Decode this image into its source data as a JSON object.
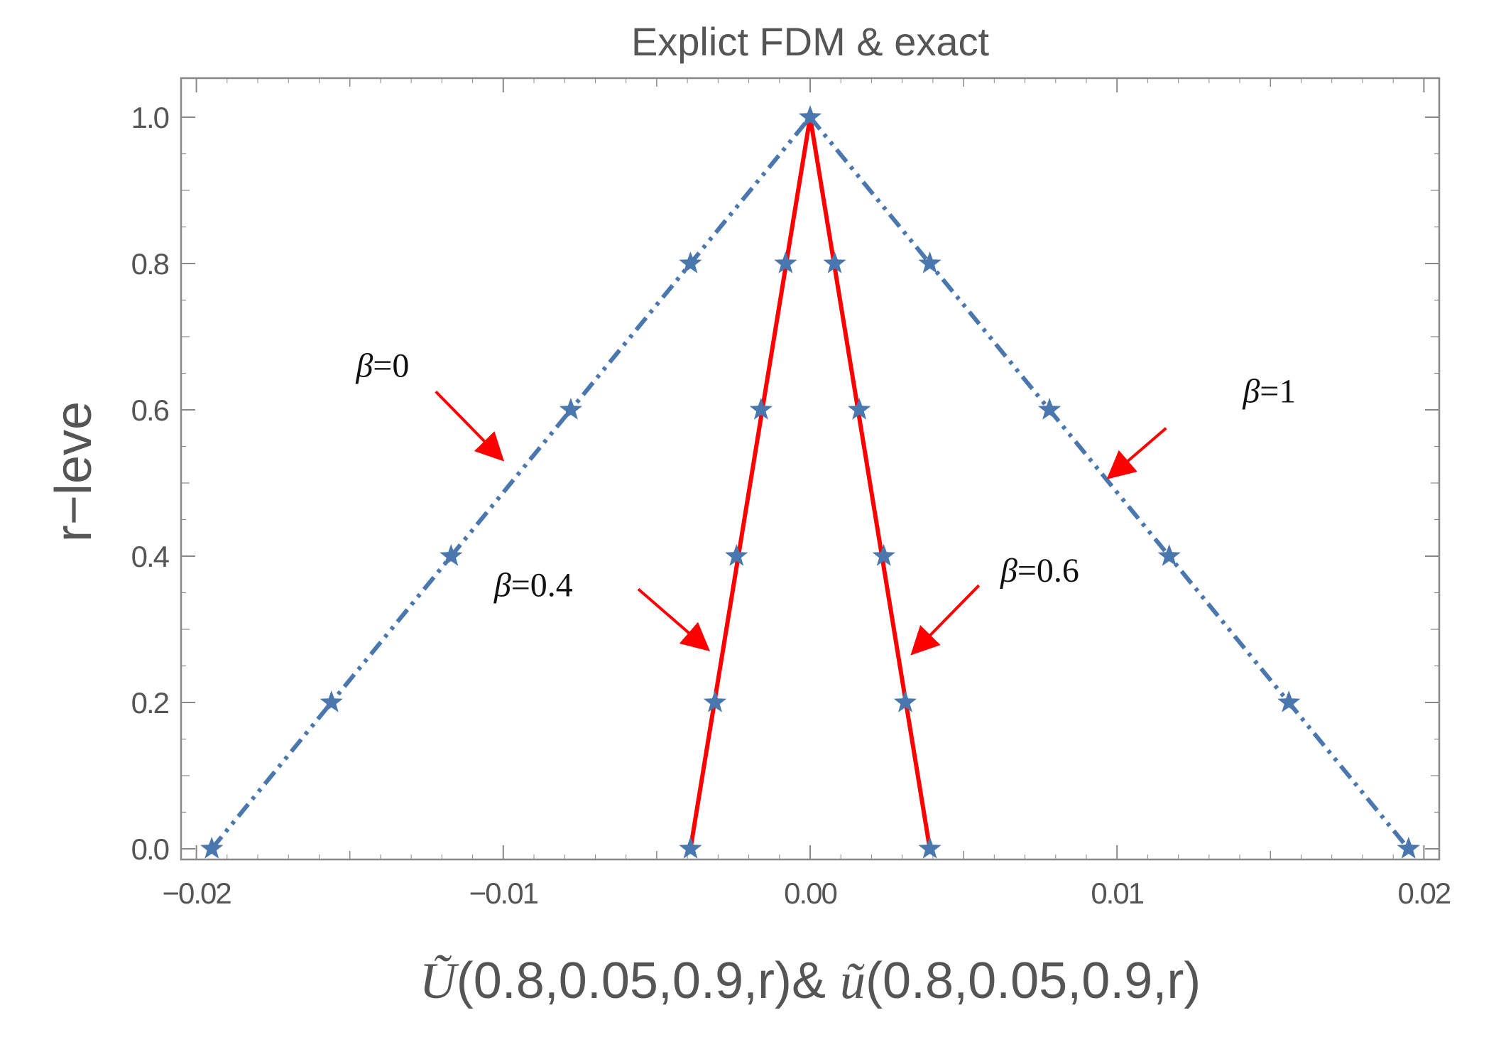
{
  "chart_data": {
    "type": "line",
    "title": "Explict FDM & exact",
    "ylabel": "r−leve",
    "xlabel": {
      "u1_symbol": "Ũ",
      "u1_args": "(0.8,0.05,0.9,r)",
      "joiner": "& ",
      "u2_symbol": "ũ",
      "u2_args": "(0.8,0.05,0.9,r)"
    },
    "xlim": [
      -0.0205,
      0.0205
    ],
    "ylim": [
      0,
      1.0
    ],
    "x_ticks": [
      {
        "value": -0.02,
        "label": "−0.02"
      },
      {
        "value": -0.01,
        "label": "−0.01"
      },
      {
        "value": 0.0,
        "label": "0.00"
      },
      {
        "value": 0.01,
        "label": "0.01"
      },
      {
        "value": 0.02,
        "label": "0.02"
      }
    ],
    "y_ticks": [
      {
        "value": 0.0,
        "label": "0.0"
      },
      {
        "value": 0.2,
        "label": "0.2"
      },
      {
        "value": 0.4,
        "label": "0.4"
      },
      {
        "value": 0.6,
        "label": "0.6"
      },
      {
        "value": 0.8,
        "label": "0.8"
      },
      {
        "value": 1.0,
        "label": "1.0"
      }
    ],
    "grid": false,
    "colors": {
      "dashdot_series": "#4a77ad",
      "solid_series": "#ff0000",
      "markers": "#4a77ad",
      "annotation_arrows": "#ff0000",
      "axes": "#888888",
      "text": "#555555"
    },
    "series": [
      {
        "style": "dashdot",
        "color": "#4a77ad",
        "x": [
          -0.0195,
          0.0
        ],
        "y": [
          0.0,
          1.0
        ]
      },
      {
        "style": "dashdot",
        "color": "#4a77ad",
        "x": [
          0.0,
          0.0195
        ],
        "y": [
          1.0,
          0.0
        ]
      },
      {
        "style": "solid",
        "color": "#ff0000",
        "x": [
          -0.0039,
          0.0
        ],
        "y": [
          0.0,
          1.0
        ]
      },
      {
        "style": "solid",
        "color": "#ff0000",
        "x": [
          0.0,
          0.0039
        ],
        "y": [
          1.0,
          0.0
        ]
      }
    ],
    "markers": {
      "shape": "star",
      "color": "#4a77ad",
      "points": [
        [
          -0.0195,
          0.0
        ],
        [
          -0.0156,
          0.2
        ],
        [
          -0.0117,
          0.4
        ],
        [
          -0.0078,
          0.6
        ],
        [
          -0.0039,
          0.8
        ],
        [
          0.0,
          1.0
        ],
        [
          0.0039,
          0.8
        ],
        [
          0.0078,
          0.6
        ],
        [
          0.0117,
          0.4
        ],
        [
          0.0156,
          0.2
        ],
        [
          0.0195,
          0.0
        ],
        [
          -0.0039,
          0.0
        ],
        [
          -0.0031,
          0.2
        ],
        [
          -0.0024,
          0.4
        ],
        [
          -0.0016,
          0.6
        ],
        [
          -0.0008,
          0.8
        ],
        [
          0.0008,
          0.8
        ],
        [
          0.0016,
          0.6
        ],
        [
          0.0024,
          0.4
        ],
        [
          0.0031,
          0.2
        ],
        [
          0.0039,
          0.0
        ]
      ]
    },
    "annotations": [
      {
        "symbol": "β",
        "value": "=0",
        "x": -0.0148,
        "y": 0.645,
        "arrow_from": [
          -0.0122,
          0.625
        ],
        "arrow_to": [
          -0.0101,
          0.535
        ]
      },
      {
        "symbol": "β",
        "value": "=1",
        "x": 0.0141,
        "y": 0.61,
        "arrow_from": [
          0.0116,
          0.575
        ],
        "arrow_to": [
          0.0098,
          0.51
        ]
      },
      {
        "symbol": "β",
        "value": "=0.4",
        "x": -0.0103,
        "y": 0.345,
        "arrow_from": [
          -0.0056,
          0.355
        ],
        "arrow_to": [
          -0.0034,
          0.275
        ]
      },
      {
        "symbol": "β",
        "value": "=0.6",
        "x": 0.0062,
        "y": 0.365,
        "arrow_from": [
          0.0055,
          0.36
        ],
        "arrow_to": [
          0.0034,
          0.27
        ]
      }
    ]
  }
}
